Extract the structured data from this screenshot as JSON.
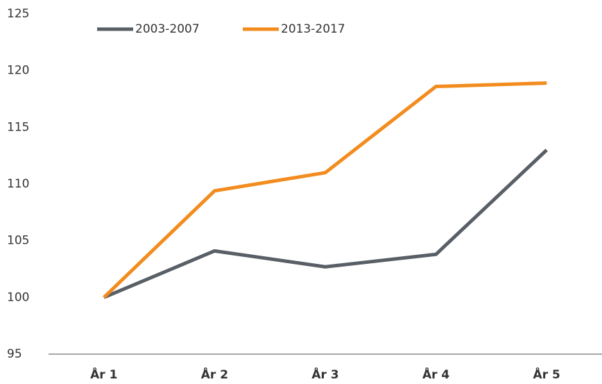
{
  "chart_data": {
    "type": "line",
    "categories": [
      "År 1",
      "År 2",
      "År 3",
      "År 4",
      "År 5"
    ],
    "series": [
      {
        "name": "2003-2007",
        "color": "#595f66",
        "values": [
          100,
          104.1,
          102.7,
          103.8,
          113.0
        ]
      },
      {
        "name": "2013-2017",
        "color": "#f28c1e",
        "values": [
          100,
          109.4,
          111.0,
          118.6,
          118.9
        ]
      }
    ],
    "ylim": [
      95,
      125
    ],
    "yticks": [
      95,
      100,
      105,
      110,
      115,
      120,
      125
    ],
    "grid": false,
    "legend": "top"
  }
}
